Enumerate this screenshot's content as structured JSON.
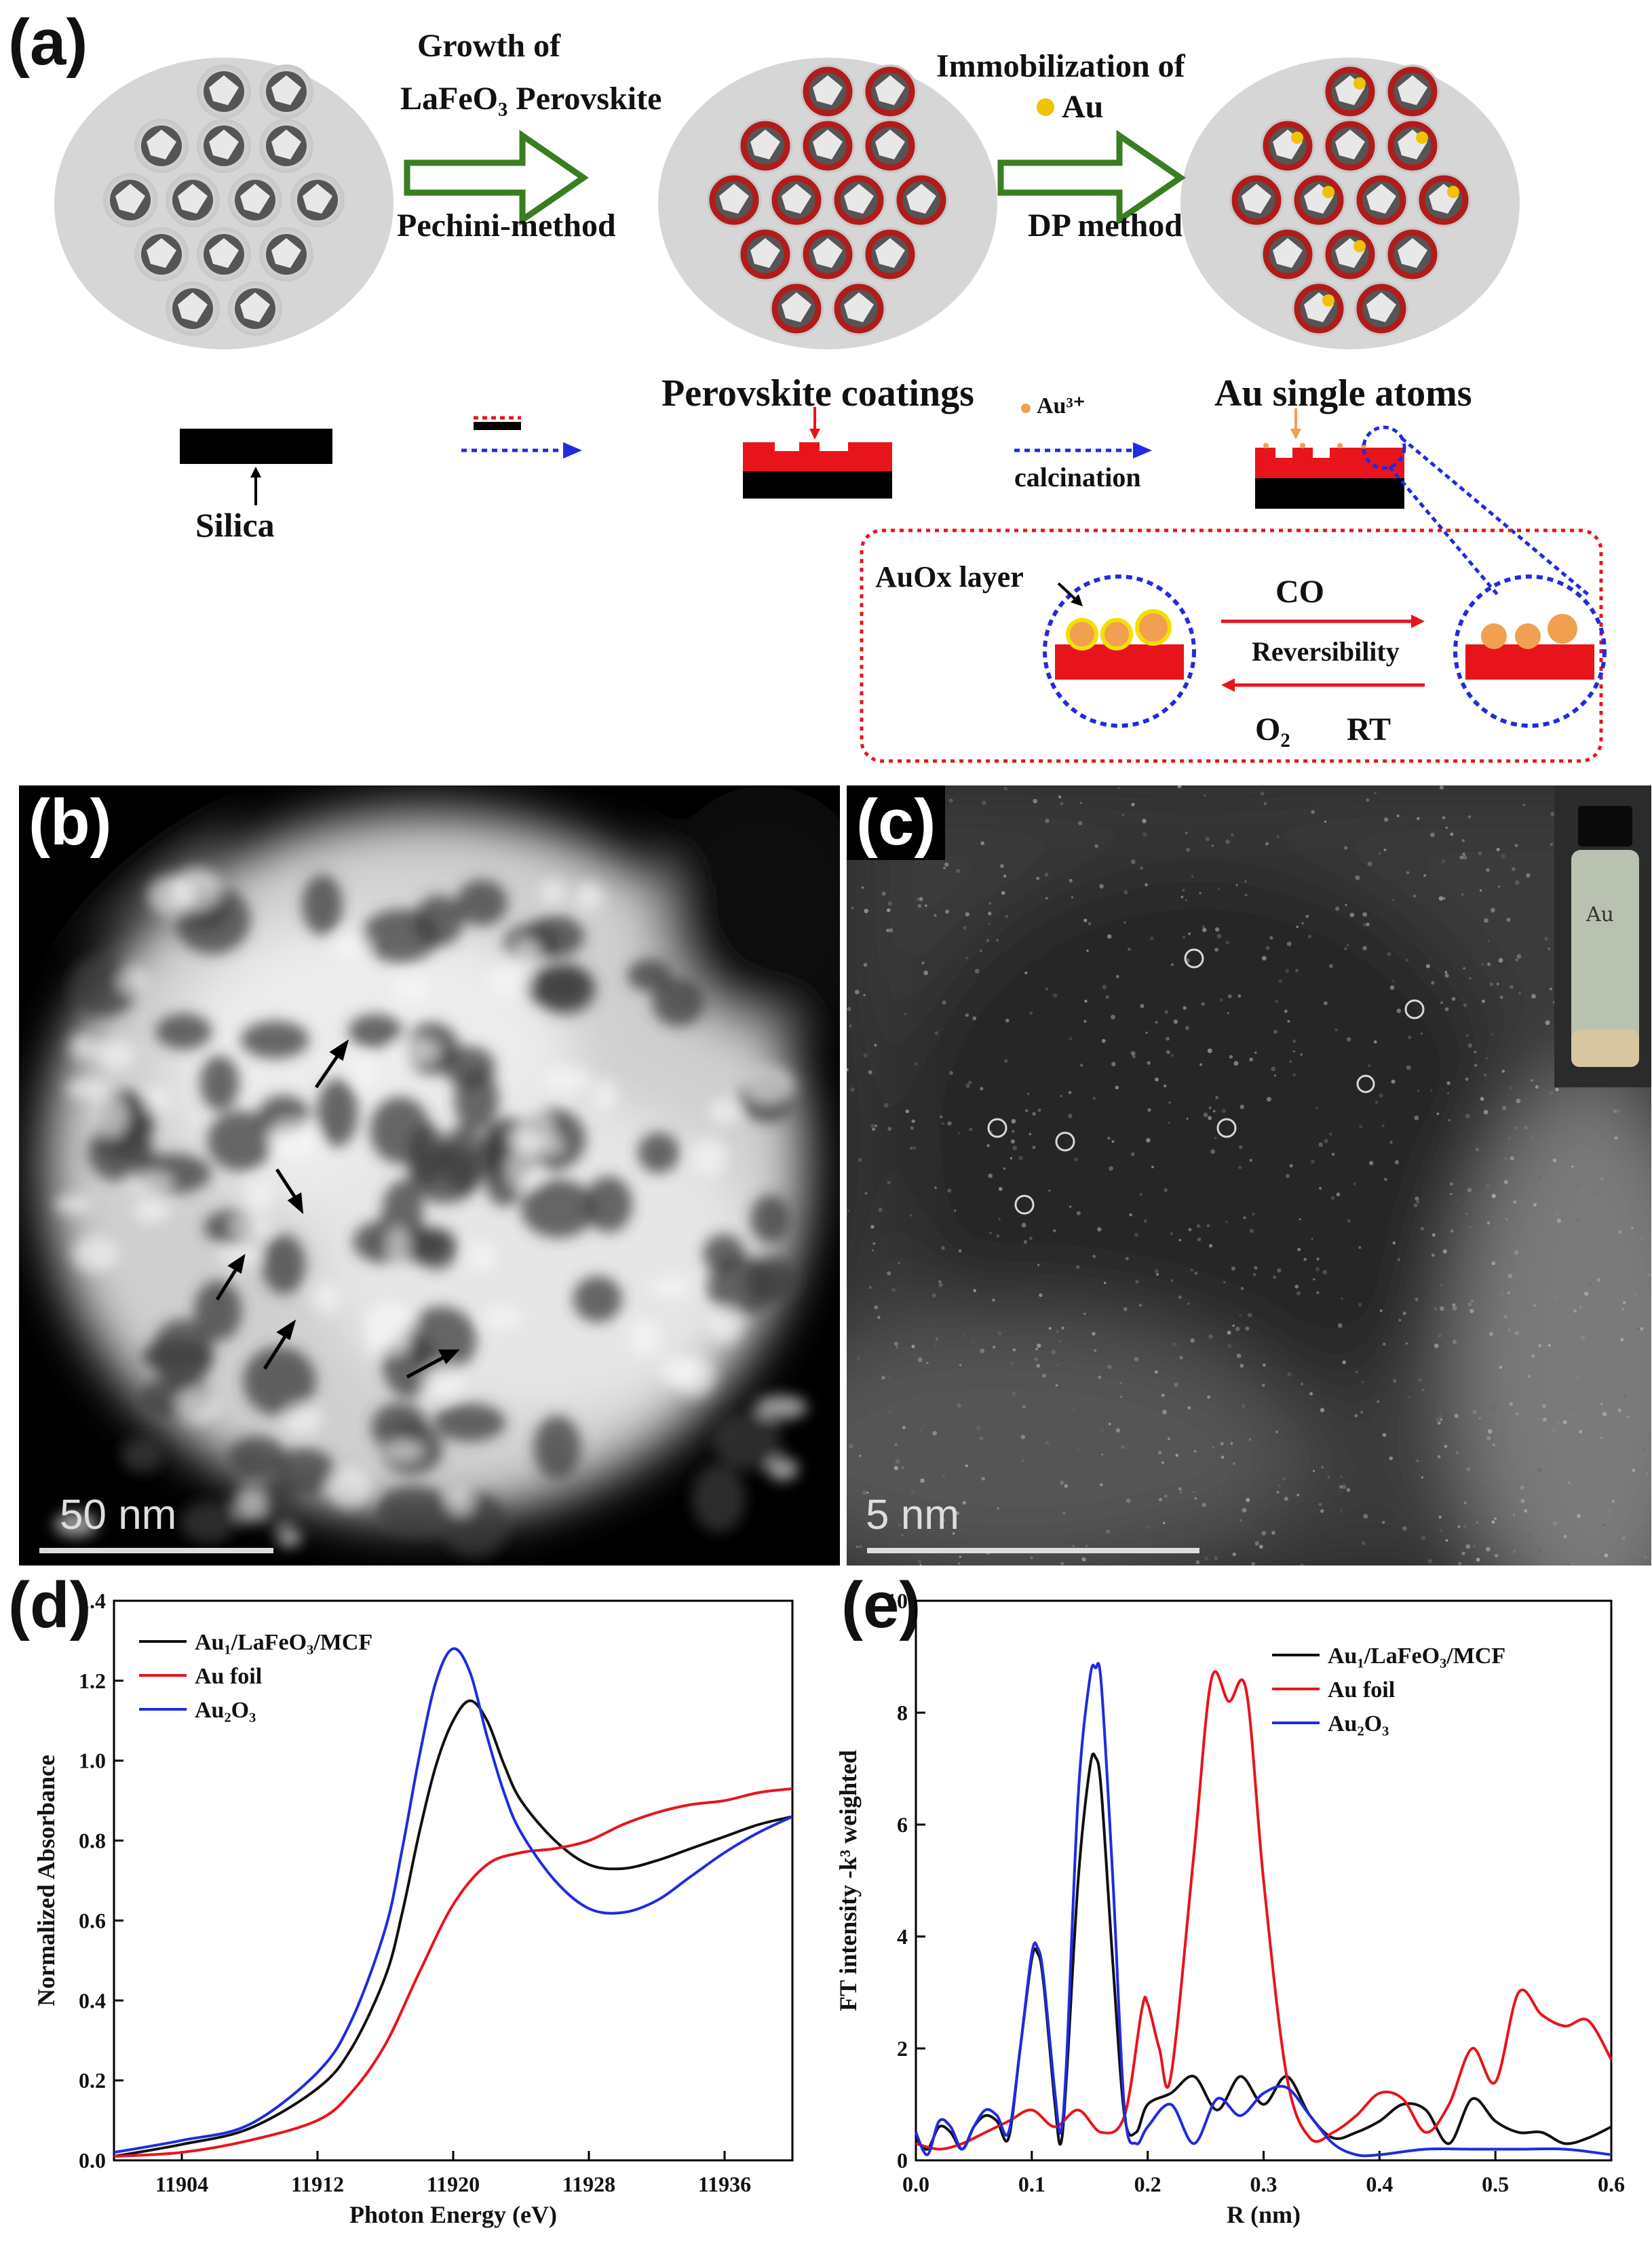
{
  "panel_a": {
    "label": "(a)",
    "step1_top": "Growth of",
    "step1_mid": "LaFeO₃ Perovskite",
    "step1_bottom": "Pechini-method",
    "step2_top": "Immobilization of",
    "step2_au": "Au",
    "step2_bottom": "DP method",
    "silica": "Silica",
    "perovskite_coatings": "Perovskite coatings",
    "au3": "Au³⁺",
    "calcination": "calcination",
    "au_single_atoms": "Au single atoms",
    "auox_layer": "AuOx layer",
    "co": "CO",
    "reversibility": "Reversibility",
    "o2": "O₂",
    "rt": "RT"
  },
  "panel_b": {
    "label": "(b)",
    "scale": "50  nm"
  },
  "panel_c": {
    "label": "(c)",
    "scale": "5  nm"
  },
  "colors": {
    "shell": "#b01c1c",
    "red": "#e8141c",
    "blue": "#1f2be0",
    "green": "#3a7d22",
    "au": "#f2c200"
  },
  "chart_data": [
    {
      "panel": "(d)",
      "type": "line",
      "xlabel": "Photon Energy (eV)",
      "ylabel": "Normalized Absorbance",
      "xlim": [
        11900,
        11940
      ],
      "ylim": [
        0.0,
        1.4
      ],
      "xticks": [
        "11904",
        "11912",
        "11920",
        "11928",
        "11936"
      ],
      "yticks": [
        "0.0",
        "0.2",
        "0.4",
        "0.6",
        "0.8",
        "1.0",
        "1.2",
        "1.4"
      ],
      "series": [
        {
          "name": "Au₁/LaFeO₃/MCF",
          "color": "#111111",
          "x": [
            11900,
            11904,
            11908,
            11912,
            11914,
            11916,
            11917,
            11918,
            11919,
            11920,
            11921,
            11922,
            11923,
            11924,
            11926,
            11928,
            11930,
            11932,
            11934,
            11936,
            11938,
            11940
          ],
          "y": [
            0.01,
            0.04,
            0.08,
            0.18,
            0.28,
            0.46,
            0.62,
            0.82,
            0.99,
            1.1,
            1.15,
            1.1,
            0.99,
            0.9,
            0.8,
            0.74,
            0.73,
            0.75,
            0.78,
            0.81,
            0.84,
            0.86
          ]
        },
        {
          "name": "Au foil",
          "color": "#e8141c",
          "x": [
            11900,
            11904,
            11908,
            11912,
            11914,
            11916,
            11918,
            11920,
            11922,
            11924,
            11926,
            11928,
            11930,
            11932,
            11934,
            11936,
            11938,
            11940
          ],
          "y": [
            0.01,
            0.02,
            0.05,
            0.1,
            0.17,
            0.29,
            0.47,
            0.64,
            0.74,
            0.77,
            0.78,
            0.8,
            0.84,
            0.87,
            0.89,
            0.9,
            0.92,
            0.93
          ]
        },
        {
          "name": "Au₂O₃",
          "color": "#1f2be0",
          "x": [
            11900,
            11904,
            11908,
            11912,
            11914,
            11916,
            11917,
            11918,
            11919,
            11920,
            11921,
            11922,
            11923,
            11924,
            11926,
            11928,
            11930,
            11932,
            11934,
            11936,
            11938,
            11940
          ],
          "y": [
            0.02,
            0.05,
            0.09,
            0.22,
            0.35,
            0.58,
            0.78,
            1.01,
            1.2,
            1.28,
            1.22,
            1.06,
            0.92,
            0.82,
            0.7,
            0.63,
            0.62,
            0.65,
            0.71,
            0.77,
            0.82,
            0.86
          ]
        }
      ]
    },
    {
      "panel": "(e)",
      "type": "line",
      "xlabel": "R (nm)",
      "ylabel": "FT intensity -k³ weighted",
      "xlim": [
        0.0,
        0.6
      ],
      "ylim": [
        0,
        10
      ],
      "xticks": [
        "0.0",
        "0.1",
        "0.2",
        "0.3",
        "0.4",
        "0.5",
        "0.6"
      ],
      "yticks": [
        "0",
        "2",
        "4",
        "6",
        "8",
        "10"
      ],
      "series": [
        {
          "name": "Au₁/LaFeO₃/MCF",
          "color": "#111111",
          "x": [
            0.0,
            0.01,
            0.02,
            0.03,
            0.04,
            0.05,
            0.06,
            0.07,
            0.08,
            0.09,
            0.1,
            0.105,
            0.11,
            0.12,
            0.125,
            0.13,
            0.14,
            0.15,
            0.155,
            0.16,
            0.17,
            0.18,
            0.19,
            0.2,
            0.22,
            0.24,
            0.26,
            0.28,
            0.3,
            0.32,
            0.34,
            0.36,
            0.38,
            0.4,
            0.42,
            0.44,
            0.46,
            0.48,
            0.5,
            0.52,
            0.54,
            0.56,
            0.58,
            0.6
          ],
          "y": [
            0.4,
            0.2,
            0.6,
            0.5,
            0.2,
            0.6,
            0.8,
            0.7,
            0.4,
            2.0,
            3.6,
            3.7,
            3.2,
            1.0,
            0.3,
            1.5,
            5.0,
            7.0,
            7.2,
            6.6,
            3.5,
            0.8,
            0.5,
            1.0,
            1.2,
            1.5,
            0.9,
            1.5,
            1.0,
            1.5,
            0.8,
            0.4,
            0.5,
            0.7,
            1.0,
            0.9,
            0.3,
            1.1,
            0.7,
            0.5,
            0.5,
            0.3,
            0.4,
            0.6
          ]
        },
        {
          "name": "Au foil",
          "color": "#e8141c",
          "x": [
            0.0,
            0.02,
            0.04,
            0.06,
            0.08,
            0.1,
            0.12,
            0.14,
            0.16,
            0.18,
            0.195,
            0.2,
            0.21,
            0.22,
            0.24,
            0.255,
            0.27,
            0.285,
            0.3,
            0.32,
            0.34,
            0.36,
            0.38,
            0.4,
            0.42,
            0.44,
            0.46,
            0.48,
            0.5,
            0.52,
            0.54,
            0.56,
            0.58,
            0.6
          ],
          "y": [
            0.3,
            0.2,
            0.3,
            0.5,
            0.7,
            0.9,
            0.6,
            0.9,
            0.5,
            0.8,
            2.7,
            2.8,
            2.0,
            1.5,
            5.5,
            8.6,
            8.2,
            8.4,
            5.0,
            1.5,
            0.4,
            0.5,
            0.8,
            1.2,
            1.1,
            0.5,
            1.0,
            2.0,
            1.4,
            3.0,
            2.6,
            2.4,
            2.5,
            1.8
          ]
        },
        {
          "name": "Au₂O₃",
          "color": "#1f2be0",
          "x": [
            0.0,
            0.01,
            0.02,
            0.03,
            0.04,
            0.05,
            0.06,
            0.07,
            0.08,
            0.09,
            0.1,
            0.105,
            0.11,
            0.12,
            0.125,
            0.13,
            0.14,
            0.15,
            0.155,
            0.16,
            0.17,
            0.18,
            0.19,
            0.2,
            0.22,
            0.24,
            0.26,
            0.28,
            0.3,
            0.32,
            0.34,
            0.36,
            0.38,
            0.4,
            0.44,
            0.48,
            0.52,
            0.56,
            0.6
          ],
          "y": [
            0.5,
            0.1,
            0.7,
            0.6,
            0.2,
            0.6,
            0.9,
            0.8,
            0.5,
            2.0,
            3.7,
            3.8,
            3.3,
            1.2,
            0.5,
            1.8,
            6.5,
            8.6,
            8.8,
            8.5,
            5.0,
            0.9,
            0.3,
            0.6,
            1.0,
            0.3,
            1.1,
            0.8,
            1.2,
            1.3,
            0.8,
            0.3,
            0.1,
            0.1,
            0.2,
            0.2,
            0.2,
            0.2,
            0.1
          ]
        }
      ]
    }
  ]
}
